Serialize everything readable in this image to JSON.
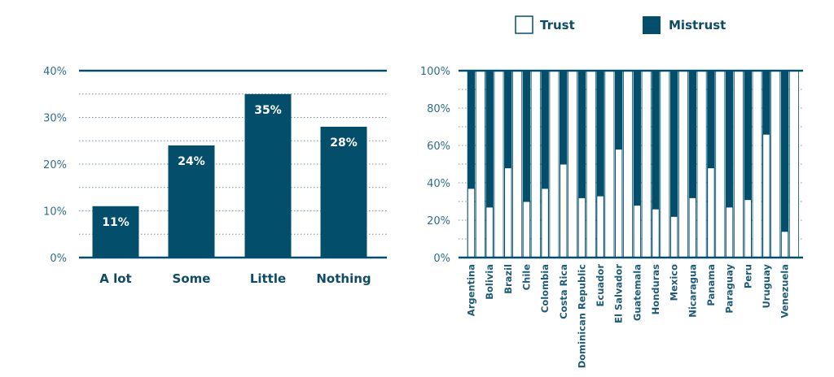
{
  "colors": {
    "dark": "#034e6b",
    "grid": "#7a97a6",
    "light": "#ffffff"
  },
  "chart_data": [
    {
      "type": "bar",
      "title": "",
      "xlabel": "",
      "ylabel": "",
      "categories": [
        "A lot",
        "Some",
        "Little",
        "Nothing"
      ],
      "values": [
        11,
        24,
        35,
        28
      ],
      "data_labels": [
        "11%",
        "24%",
        "35%",
        "28%"
      ],
      "ylim": [
        0,
        40
      ],
      "yticks": [
        0,
        10,
        20,
        30,
        40
      ],
      "ytick_labels": [
        "0%",
        "10%",
        "20%",
        "30%",
        "40%"
      ],
      "grid": true
    },
    {
      "type": "bar",
      "stacked": true,
      "title": "",
      "legend": [
        "Trust",
        "Mistrust"
      ],
      "legend_position": "top",
      "categories": [
        "Argentina",
        "Bolivia",
        "Brazil",
        "Chile",
        "Colombia",
        "Costa Rica",
        "Dominican Republic",
        "Ecuador",
        "El Salvador",
        "Guatemala",
        "Honduras",
        "Mexico",
        "Nicaragua",
        "Panama",
        "Paraguay",
        "Peru",
        "Uruguay",
        "Venezuela"
      ],
      "series": [
        {
          "name": "Trust",
          "values": [
            37,
            27,
            48,
            30,
            37,
            50,
            32,
            33,
            58,
            28,
            26,
            22,
            32,
            48,
            27,
            31,
            66,
            14
          ]
        },
        {
          "name": "Mistrust",
          "values": [
            63,
            73,
            52,
            70,
            63,
            50,
            68,
            67,
            42,
            72,
            74,
            78,
            68,
            52,
            73,
            69,
            34,
            86
          ]
        }
      ],
      "ylim": [
        0,
        100
      ],
      "yticks": [
        0,
        20,
        40,
        60,
        80,
        100
      ],
      "ytick_labels": [
        "0%",
        "20%",
        "40%",
        "60%",
        "80%",
        "100%"
      ],
      "grid": true
    }
  ]
}
